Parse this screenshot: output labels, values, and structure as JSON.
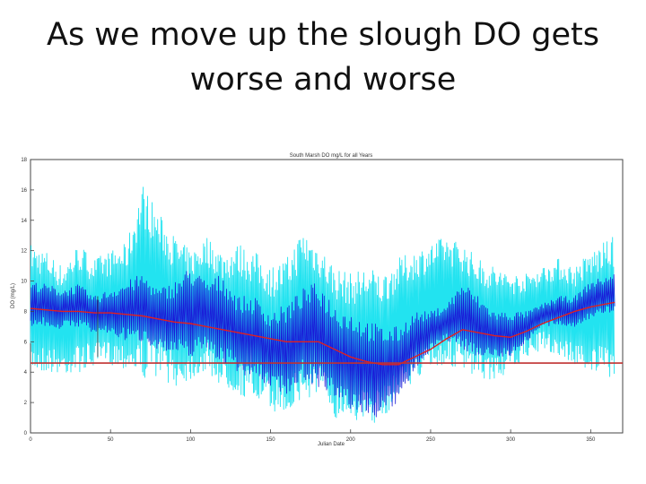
{
  "slide": {
    "title_line1": "As we move up the slough DO gets",
    "title_line2": "worse and worse"
  },
  "chart_data": {
    "type": "line",
    "title": "South Marsh DO mg/L for all Years",
    "xlabel": "Julian Date",
    "ylabel": "DO (mg/L)",
    "xlim": [
      0,
      370
    ],
    "ylim": [
      0,
      18
    ],
    "xticks": [
      0,
      50,
      100,
      150,
      200,
      250,
      300,
      350
    ],
    "xtick_labels": [
      "0",
      "50",
      "100",
      "150",
      "200",
      "250",
      "300",
      "350"
    ],
    "yticks": [
      0,
      2,
      4,
      6,
      8,
      10,
      12,
      14,
      16,
      18
    ],
    "ytick_labels": [
      "0",
      "2",
      "4",
      "6",
      "8",
      "10",
      "12",
      "14",
      "16",
      "18"
    ],
    "grid": false,
    "legend": null,
    "series": [
      {
        "color": "#22e3f0",
        "style": "band",
        "x": [
          0,
          10,
          20,
          30,
          40,
          50,
          60,
          70,
          80,
          90,
          100,
          110,
          120,
          130,
          140,
          150,
          160,
          170,
          180,
          190,
          200,
          210,
          220,
          230,
          240,
          250,
          260,
          270,
          280,
          290,
          300,
          310,
          320,
          330,
          340,
          350,
          365
        ],
        "upper": [
          12.5,
          12.0,
          11.0,
          12.5,
          11.5,
          12.0,
          12.5,
          16.5,
          14.5,
          13.0,
          12.0,
          13.0,
          12.0,
          12.5,
          12.0,
          11.0,
          11.5,
          13.5,
          12.5,
          11.0,
          10.5,
          11.0,
          10.5,
          11.5,
          12.0,
          12.5,
          13.0,
          12.5,
          11.5,
          11.0,
          10.5,
          10.5,
          11.0,
          11.5,
          11.0,
          12.0,
          13.0
        ],
        "lower": [
          4.0,
          4.0,
          3.8,
          4.0,
          4.3,
          4.5,
          4.2,
          3.5,
          3.8,
          3.0,
          3.5,
          4.0,
          3.0,
          2.5,
          2.0,
          1.5,
          1.2,
          2.0,
          2.5,
          1.0,
          1.0,
          0.5,
          0.8,
          2.5,
          3.5,
          4.0,
          4.5,
          4.0,
          3.5,
          3.5,
          4.0,
          5.0,
          5.5,
          5.0,
          4.5,
          4.0,
          3.5
        ]
      },
      {
        "color": "#1a1ad8",
        "style": "band",
        "x": [
          0,
          10,
          20,
          30,
          40,
          50,
          60,
          70,
          80,
          90,
          100,
          110,
          120,
          130,
          140,
          150,
          160,
          170,
          180,
          190,
          200,
          210,
          220,
          230,
          240,
          250,
          260,
          270,
          280,
          290,
          300,
          310,
          320,
          330,
          340,
          350,
          365
        ],
        "upper": [
          10.0,
          9.8,
          9.5,
          9.8,
          9.0,
          9.5,
          10.0,
          10.5,
          9.5,
          10.0,
          11.0,
          10.0,
          10.5,
          9.0,
          9.0,
          8.0,
          8.5,
          9.5,
          10.0,
          8.5,
          8.0,
          7.5,
          7.0,
          7.0,
          8.0,
          8.0,
          8.5,
          10.0,
          9.0,
          8.0,
          8.0,
          8.0,
          8.5,
          9.0,
          9.0,
          10.0,
          10.5
        ],
        "lower": [
          7.0,
          7.0,
          6.8,
          7.0,
          6.5,
          6.5,
          6.0,
          6.0,
          5.5,
          5.0,
          5.0,
          5.5,
          4.5,
          4.0,
          3.5,
          3.0,
          2.5,
          3.5,
          3.0,
          2.0,
          1.5,
          1.0,
          1.0,
          2.0,
          4.0,
          5.5,
          6.0,
          5.5,
          5.0,
          5.0,
          5.0,
          6.0,
          7.0,
          7.0,
          7.0,
          7.5,
          8.0
        ]
      },
      {
        "color": "#e02020",
        "style": "mean",
        "x": [
          0,
          10,
          20,
          30,
          40,
          50,
          60,
          70,
          80,
          90,
          100,
          110,
          120,
          130,
          140,
          150,
          160,
          170,
          180,
          190,
          200,
          210,
          220,
          230,
          240,
          250,
          260,
          270,
          280,
          290,
          300,
          310,
          320,
          330,
          340,
          350,
          365
        ],
        "values": [
          8.2,
          8.1,
          8.0,
          8.0,
          7.9,
          7.9,
          7.8,
          7.7,
          7.5,
          7.3,
          7.2,
          7.0,
          6.8,
          6.6,
          6.4,
          6.2,
          6.0,
          6.0,
          6.0,
          5.5,
          5.0,
          4.7,
          4.5,
          4.5,
          5.0,
          5.5,
          6.2,
          6.8,
          6.6,
          6.4,
          6.3,
          6.7,
          7.2,
          7.6,
          8.0,
          8.3,
          8.6
        ]
      },
      {
        "color": "#c03030",
        "style": "threshold",
        "x": [
          0,
          370
        ],
        "values": [
          4.6,
          4.6
        ]
      }
    ]
  }
}
